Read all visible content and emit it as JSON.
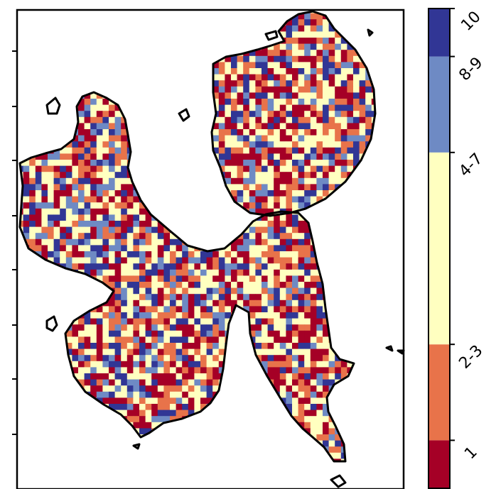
{
  "chart_data": {
    "type": "heatmap",
    "title": "",
    "xlabel": "",
    "ylabel": "",
    "grid": false,
    "colorbar": {
      "placement": "right",
      "classes": [
        {
          "label": "1",
          "color": "#a50026",
          "from": 0,
          "to": 1
        },
        {
          "label": "2-3",
          "color": "#e8734a",
          "from": 1,
          "to": 3
        },
        {
          "label": "4-7",
          "color": "#ffffc0",
          "from": 3,
          "to": 7
        },
        {
          "label": "8-9",
          "color": "#6e8ac4",
          "from": 7,
          "to": 9
        },
        {
          "label": "10",
          "color": "#313695",
          "from": 9,
          "to": 10
        }
      ]
    },
    "map": {
      "outline_color": "#000000",
      "cell_classes": [
        "1",
        "2-3",
        "4-7",
        "8-9",
        "10"
      ],
      "cell_class_weights": [
        0.24,
        0.2,
        0.3,
        0.12,
        0.14
      ]
    }
  }
}
